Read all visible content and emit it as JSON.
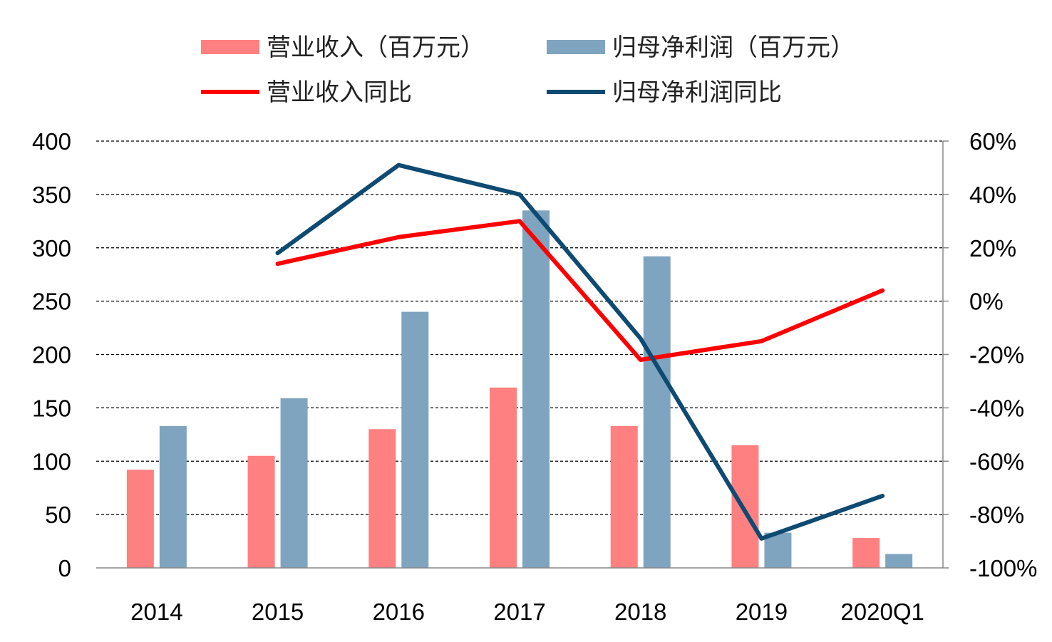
{
  "chart_data": {
    "type": "bar",
    "categories": [
      "2014",
      "2015",
      "2016",
      "2017",
      "2018",
      "2019",
      "2020Q1"
    ],
    "series": [
      {
        "name": "营业收入（百万元）",
        "kind": "bar",
        "axis": "left",
        "color": "#FF8080",
        "values": [
          92,
          105,
          130,
          169,
          133,
          115,
          28
        ]
      },
      {
        "name": "归母净利润（百万元）",
        "kind": "bar",
        "axis": "left",
        "color": "#7FA4BF",
        "values": [
          133,
          159,
          240,
          335,
          292,
          33,
          13
        ]
      },
      {
        "name": "营业收入同比",
        "kind": "line",
        "axis": "right",
        "color": "#FF0000",
        "values": [
          null,
          14,
          24,
          30,
          -22,
          -15,
          4
        ]
      },
      {
        "name": "归母净利润同比",
        "kind": "line",
        "axis": "right",
        "color": "#0E4A72",
        "values": [
          null,
          18,
          51,
          40,
          -14,
          -89,
          -73
        ]
      }
    ],
    "y_left": {
      "min": 0,
      "max": 400,
      "ticks": [
        0,
        50,
        100,
        150,
        200,
        250,
        300,
        350,
        400
      ]
    },
    "y_right": {
      "min": -100,
      "max": 60,
      "ticks": [
        -100,
        -80,
        -60,
        -40,
        -20,
        0,
        20,
        40,
        60
      ],
      "tick_labels": [
        "-100%",
        "-80%",
        "-60%",
        "-40%",
        "-20%",
        "0%",
        "20%",
        "40%",
        "60%"
      ]
    },
    "grid": true,
    "legend_position": "top"
  }
}
